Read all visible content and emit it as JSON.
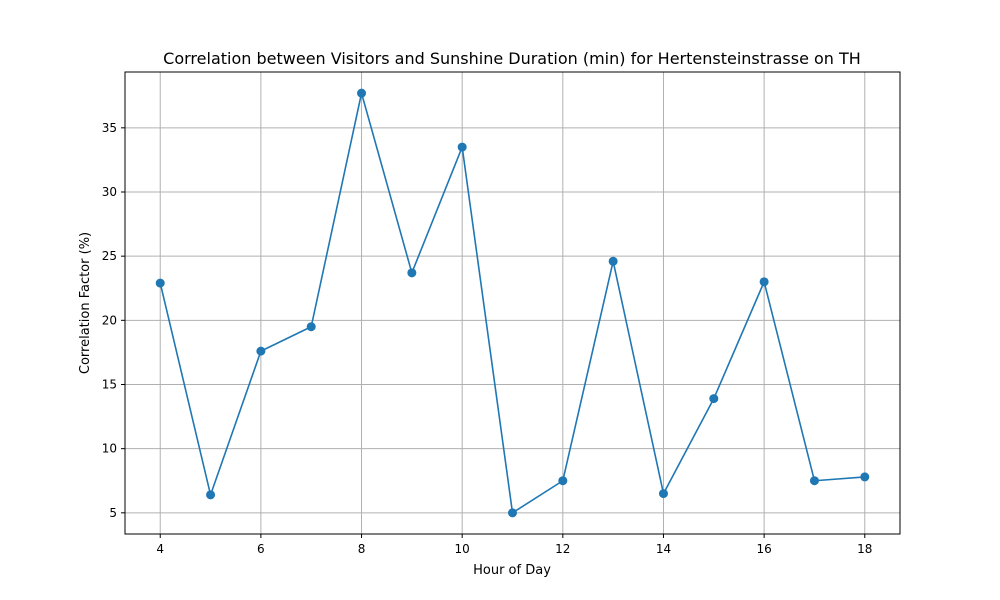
{
  "chart_data": {
    "type": "line",
    "title": "Correlation between Visitors and Sunshine Duration (min) for Hertensteinstrasse on TH",
    "xlabel": "Hour of Day",
    "ylabel": "Correlation Factor (%)",
    "x": [
      4,
      5,
      6,
      7,
      8,
      9,
      10,
      11,
      12,
      13,
      14,
      15,
      16,
      17,
      18
    ],
    "series": [
      {
        "values": [
          22.9,
          6.4,
          17.6,
          19.5,
          37.7,
          23.7,
          33.5,
          5.0,
          7.5,
          24.6,
          6.5,
          13.9,
          23.0,
          7.5,
          7.8
        ]
      }
    ],
    "xlim": [
      3.3,
      18.7
    ],
    "ylim": [
      3.35,
      39.35
    ],
    "xticks": [
      4,
      6,
      8,
      10,
      12,
      14,
      16,
      18
    ],
    "yticks": [
      5,
      10,
      15,
      20,
      25,
      30,
      35
    ],
    "grid": true,
    "line_color": "#1f77b4",
    "marker": "circle"
  }
}
